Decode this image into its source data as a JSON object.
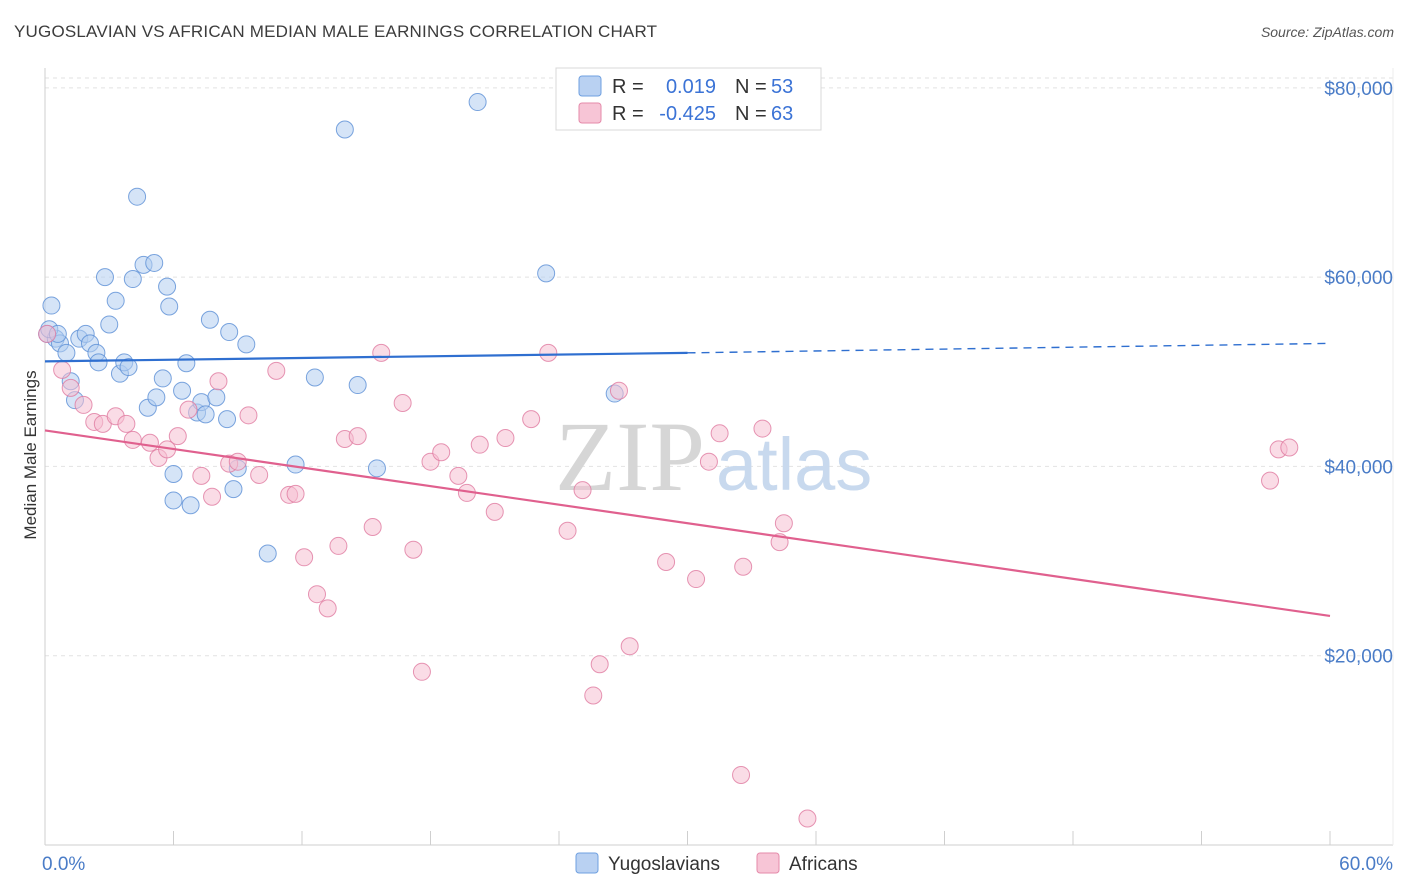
{
  "title": "YUGOSLAVIAN VS AFRICAN MEDIAN MALE EARNINGS CORRELATION CHART",
  "source": "Source: ZipAtlas.com",
  "watermark": {
    "zip": "ZIP",
    "atlas": "atlas"
  },
  "chart_data": {
    "type": "scatter",
    "xlabel": "",
    "ylabel": "Median Male Earnings",
    "xlim": [
      0,
      60
    ],
    "ylim": [
      0,
      84000
    ],
    "x_tick_labels": {
      "min": "0.0%",
      "max": "60.0%"
    },
    "y_ticks": [
      {
        "value": 20000,
        "label": "$20,000"
      },
      {
        "value": 40000,
        "label": "$40,000"
      },
      {
        "value": 60000,
        "label": "$60,000"
      },
      {
        "value": 80000,
        "label": "$80,000"
      }
    ],
    "legend": [
      {
        "name": "Yugoslavians",
        "r_label": "R =",
        "r_value": "0.019",
        "n_label": "N =",
        "n_value": "53",
        "color": "#6fa0e0",
        "fill": "#b9d1f2"
      },
      {
        "name": "Africans",
        "r_label": "R =",
        "r_value": "-0.425",
        "n_label": "N =",
        "n_value": "63",
        "color": "#e58aaa",
        "fill": "#f7c5d6"
      }
    ],
    "series": [
      {
        "name": "Yugoslavians",
        "color": "#5b8fd6",
        "fill": "#b3cdf0",
        "trend": {
          "x0": 0,
          "y0": 51100,
          "x1": 30,
          "y1": 52000,
          "x_dash_end": 60,
          "y_dash_end": 53000,
          "color": "#2f6fd0"
        },
        "points": [
          [
            0.1,
            54000
          ],
          [
            0.3,
            57000
          ],
          [
            0.5,
            53500
          ],
          [
            0.7,
            53000
          ],
          [
            1.0,
            52000
          ],
          [
            1.2,
            49000
          ],
          [
            1.4,
            47000
          ],
          [
            1.6,
            53500
          ],
          [
            1.9,
            54000
          ],
          [
            2.1,
            53000
          ],
          [
            2.4,
            52000
          ],
          [
            2.8,
            60000
          ],
          [
            3.0,
            55000
          ],
          [
            3.3,
            57500
          ],
          [
            3.5,
            49800
          ],
          [
            3.7,
            51000
          ],
          [
            3.9,
            50500
          ],
          [
            4.1,
            59800
          ],
          [
            4.3,
            68500
          ],
          [
            4.6,
            61300
          ],
          [
            4.8,
            46200
          ],
          [
            5.1,
            61500
          ],
          [
            5.2,
            47300
          ],
          [
            5.5,
            49300
          ],
          [
            5.7,
            59000
          ],
          [
            5.8,
            56900
          ],
          [
            6.0,
            39200
          ],
          [
            6.0,
            36400
          ],
          [
            6.4,
            48000
          ],
          [
            6.6,
            50900
          ],
          [
            6.8,
            35900
          ],
          [
            7.1,
            45700
          ],
          [
            7.3,
            46800
          ],
          [
            7.5,
            45500
          ],
          [
            7.7,
            55500
          ],
          [
            8.0,
            47300
          ],
          [
            8.5,
            45000
          ],
          [
            8.6,
            54200
          ],
          [
            8.8,
            37600
          ],
          [
            9.0,
            39800
          ],
          [
            9.4,
            52900
          ],
          [
            10.4,
            30800
          ],
          [
            11.7,
            40200
          ],
          [
            12.6,
            49400
          ],
          [
            14.0,
            75600
          ],
          [
            14.6,
            48600
          ],
          [
            15.5,
            39800
          ],
          [
            20.2,
            78500
          ],
          [
            23.4,
            60400
          ],
          [
            26.6,
            47700
          ],
          [
            0.2,
            54500
          ],
          [
            0.6,
            54000
          ],
          [
            2.5,
            51000
          ]
        ]
      },
      {
        "name": "Africans",
        "color": "#e07aa0",
        "fill": "#f5bfd2",
        "trend": {
          "x0": 0,
          "y0": 43800,
          "x1": 60,
          "y1": 24200,
          "color": "#e0608e"
        },
        "points": [
          [
            0.1,
            54000
          ],
          [
            0.8,
            50200
          ],
          [
            1.2,
            48300
          ],
          [
            1.8,
            46500
          ],
          [
            2.3,
            44700
          ],
          [
            2.7,
            44500
          ],
          [
            3.3,
            45300
          ],
          [
            3.8,
            44500
          ],
          [
            4.1,
            42800
          ],
          [
            4.9,
            42500
          ],
          [
            5.3,
            40900
          ],
          [
            5.7,
            41800
          ],
          [
            6.2,
            43200
          ],
          [
            6.7,
            46000
          ],
          [
            7.3,
            39000
          ],
          [
            7.8,
            36800
          ],
          [
            8.1,
            49000
          ],
          [
            8.6,
            40300
          ],
          [
            9.0,
            40500
          ],
          [
            9.5,
            45400
          ],
          [
            10.0,
            39100
          ],
          [
            10.8,
            50100
          ],
          [
            11.4,
            37000
          ],
          [
            11.7,
            37100
          ],
          [
            12.1,
            30400
          ],
          [
            12.7,
            26500
          ],
          [
            13.2,
            25000
          ],
          [
            13.7,
            31600
          ],
          [
            14.0,
            42900
          ],
          [
            14.6,
            43200
          ],
          [
            15.3,
            33600
          ],
          [
            15.7,
            52000
          ],
          [
            16.7,
            46700
          ],
          [
            17.2,
            31200
          ],
          [
            17.6,
            18300
          ],
          [
            18.0,
            40500
          ],
          [
            18.5,
            41500
          ],
          [
            19.3,
            39000
          ],
          [
            19.7,
            37200
          ],
          [
            20.3,
            42300
          ],
          [
            21.0,
            35200
          ],
          [
            21.5,
            43000
          ],
          [
            22.7,
            45000
          ],
          [
            23.5,
            52000
          ],
          [
            24.4,
            33200
          ],
          [
            25.1,
            37500
          ],
          [
            25.6,
            15800
          ],
          [
            25.9,
            19100
          ],
          [
            26.8,
            48000
          ],
          [
            27.3,
            21000
          ],
          [
            29.0,
            29900
          ],
          [
            30.4,
            28100
          ],
          [
            31.0,
            40500
          ],
          [
            31.5,
            43500
          ],
          [
            32.5,
            7400
          ],
          [
            32.6,
            29400
          ],
          [
            33.5,
            44000
          ],
          [
            34.3,
            32000
          ],
          [
            34.5,
            34000
          ],
          [
            35.6,
            2800
          ],
          [
            57.2,
            38500
          ],
          [
            57.6,
            41800
          ],
          [
            58.1,
            42000
          ]
        ]
      }
    ]
  }
}
